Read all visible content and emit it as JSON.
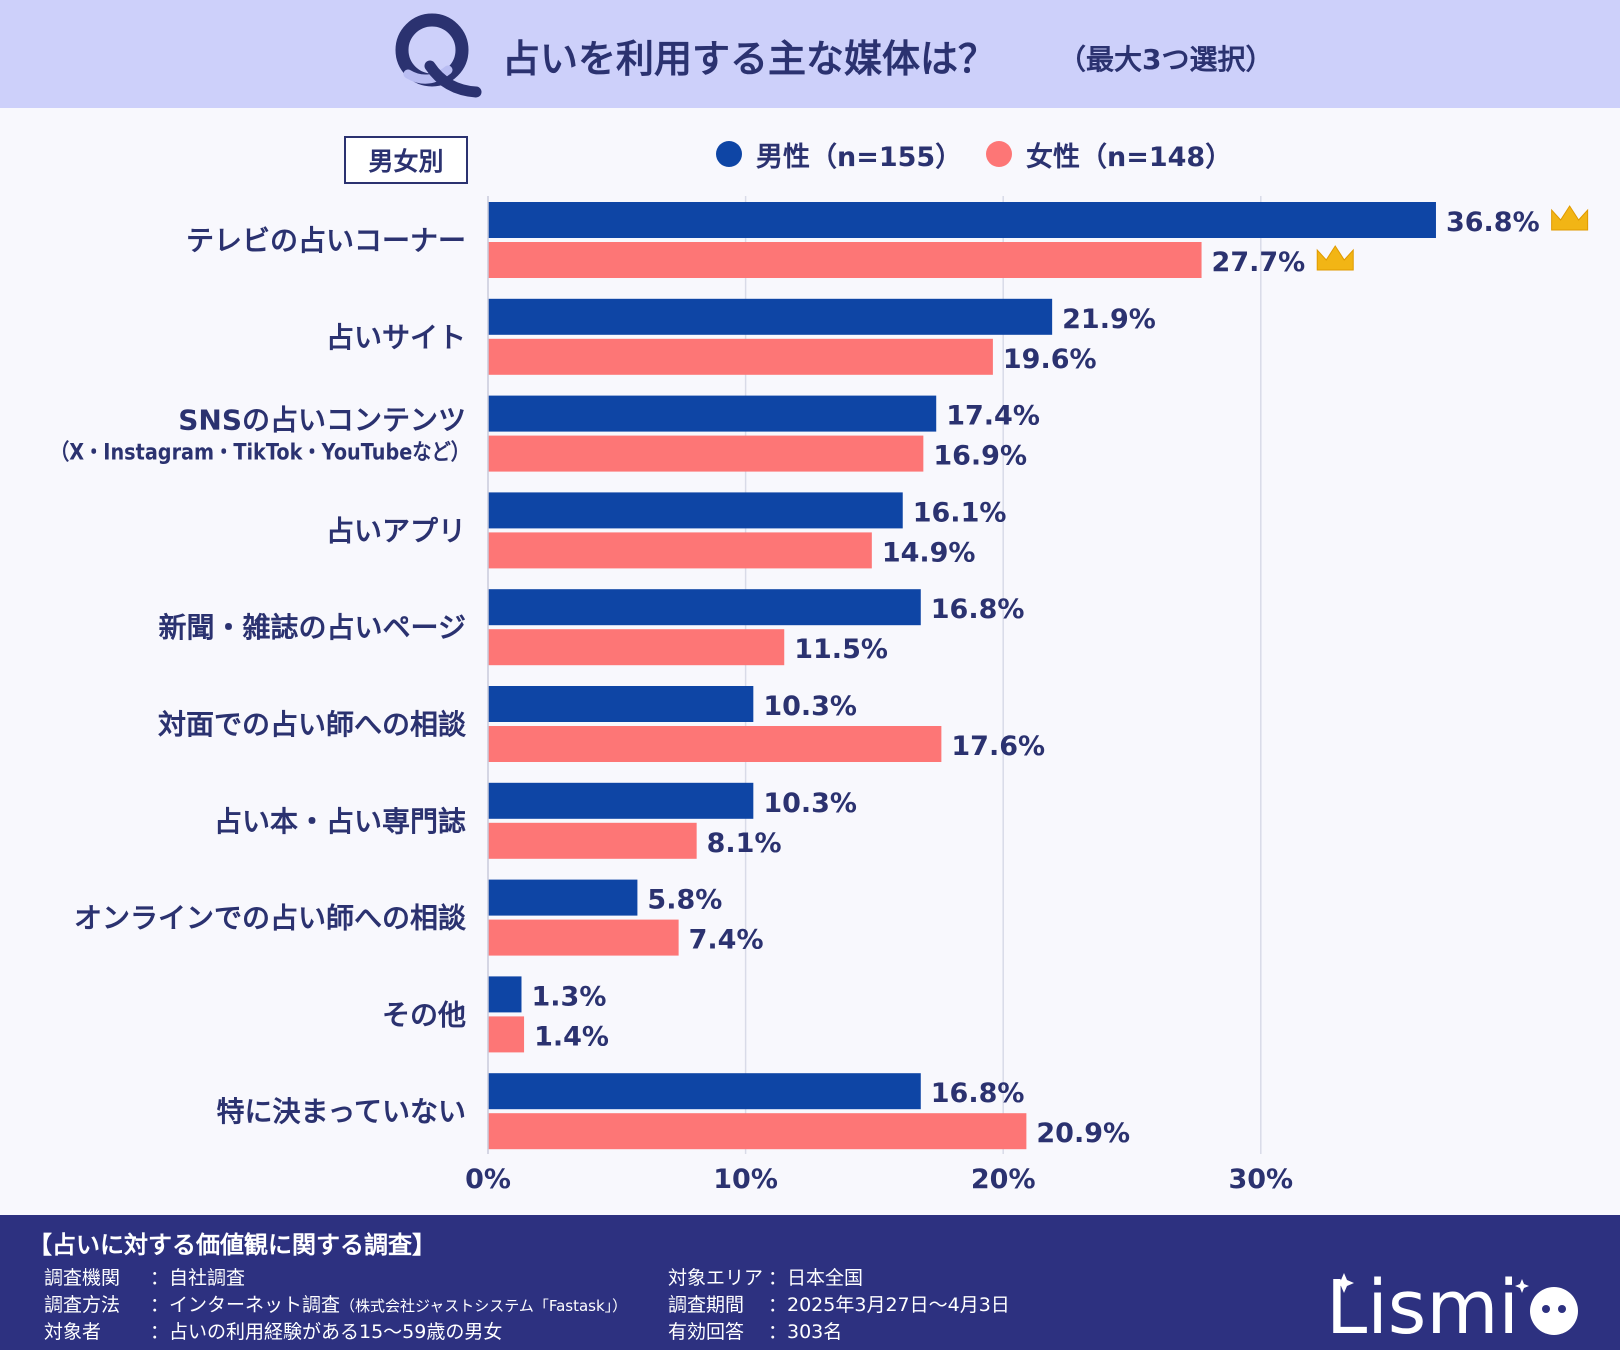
{
  "header": {
    "q_letter": "Q",
    "title": "占いを利用する主な媒体は？",
    "note": "（最大3つ選択）"
  },
  "group_label": "男女別",
  "legend": [
    {
      "label": "男性（n=155）",
      "color": "#0e45a5"
    },
    {
      "label": "女性（n=148）",
      "color": "#fd7676"
    }
  ],
  "chart_data": {
    "type": "bar",
    "orientation": "horizontal",
    "categories": [
      [
        "テレビの占いコーナー"
      ],
      [
        "占いサイト"
      ],
      [
        "SNSの占いコンテンツ",
        "（X・Instagram・TikTok・YouTubeなど）"
      ],
      [
        "占いアプリ"
      ],
      [
        "新聞・雑誌の占いページ"
      ],
      [
        "対面での占い師への相談"
      ],
      [
        "占い本・占い専門誌"
      ],
      [
        "オンラインでの占い師への相談"
      ],
      [
        "その他"
      ],
      [
        "特に決まっていない"
      ]
    ],
    "series": [
      {
        "name": "男性（n=155）",
        "color": "#0e45a5",
        "values": [
          36.8,
          21.9,
          17.4,
          16.1,
          16.8,
          10.3,
          10.3,
          5.8,
          1.3,
          16.8
        ]
      },
      {
        "name": "女性（n=148）",
        "color": "#fd7676",
        "values": [
          27.7,
          19.6,
          16.9,
          14.9,
          11.5,
          17.6,
          8.1,
          7.4,
          1.4,
          20.9
        ]
      }
    ],
    "value_suffix": "%",
    "xlim": [
      0,
      40
    ],
    "xticks": [
      0,
      10,
      20,
      30
    ],
    "xtick_labels": [
      "0%",
      "10%",
      "20%",
      "30%"
    ],
    "highlight": [
      {
        "category_index": 0,
        "series_index": 0
      },
      {
        "category_index": 0,
        "series_index": 1
      }
    ],
    "highlight_icon": "crown-icon",
    "grid": true
  },
  "footer": {
    "title": "【占いに対する価値観に関する調査】",
    "rows": [
      {
        "label": "調査機関",
        "value": "：自社調査"
      },
      {
        "label": "調査方法",
        "value": "：インターネット調査",
        "small": "（株式会社ジャストシステム「Fastask」）"
      },
      {
        "label": "対象者",
        "value": "：占いの利用経験がある15～59歳の男女"
      },
      {
        "label": "対象エリア",
        "value": "：日本全国"
      },
      {
        "label": "調査期間",
        "value": "：2025年3月27日～4月3日"
      },
      {
        "label": "有効回答",
        "value": "：303名"
      }
    ],
    "logo_text": "Lismi"
  }
}
